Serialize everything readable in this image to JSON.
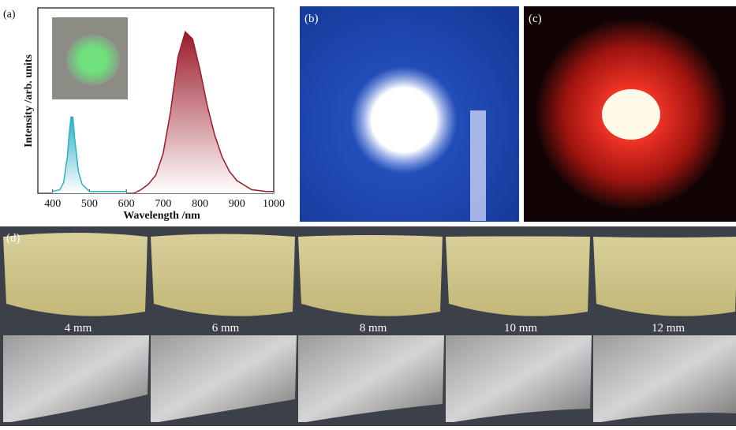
{
  "chart_data": {
    "type": "line",
    "panel_label": "(a)",
    "x_label": "Wavelength /nm",
    "y_label": "Intensity /arb. units",
    "x": [
      400,
      420,
      430,
      440,
      445,
      450,
      455,
      460,
      470,
      480,
      500,
      550,
      600,
      620,
      640,
      660,
      680,
      700,
      720,
      740,
      760,
      780,
      800,
      820,
      840,
      860,
      880,
      900,
      940,
      980,
      1000
    ],
    "series": [
      {
        "color": "#2fb0c4",
        "values": [
          0.01,
          0.02,
          0.06,
          0.2,
          0.33,
          0.42,
          0.42,
          0.3,
          0.12,
          0.05,
          0.01,
          0.01,
          0.01,
          null,
          null,
          null,
          null,
          null,
          null,
          null,
          null,
          null,
          null,
          null,
          null,
          null,
          null,
          null,
          null,
          null,
          null
        ]
      },
      {
        "color": "#9b1b2a",
        "values": [
          null,
          null,
          null,
          null,
          null,
          null,
          null,
          null,
          null,
          null,
          null,
          null,
          null,
          0.0,
          0.02,
          0.05,
          0.1,
          0.22,
          0.45,
          0.75,
          0.89,
          0.85,
          0.68,
          0.48,
          0.32,
          0.2,
          0.12,
          0.07,
          0.02,
          0.01,
          0.01
        ]
      }
    ],
    "xlim": [
      360,
      1000
    ],
    "xticks": [
      400,
      500,
      600,
      700,
      800,
      900,
      1000
    ],
    "ylim": [
      0,
      1
    ]
  },
  "photos": {
    "b": "(b)",
    "c": "(c)",
    "d": "(d)"
  },
  "thickness_labels": [
    "4 mm",
    "6 mm",
    "8 mm",
    "10 mm",
    "12 mm"
  ]
}
